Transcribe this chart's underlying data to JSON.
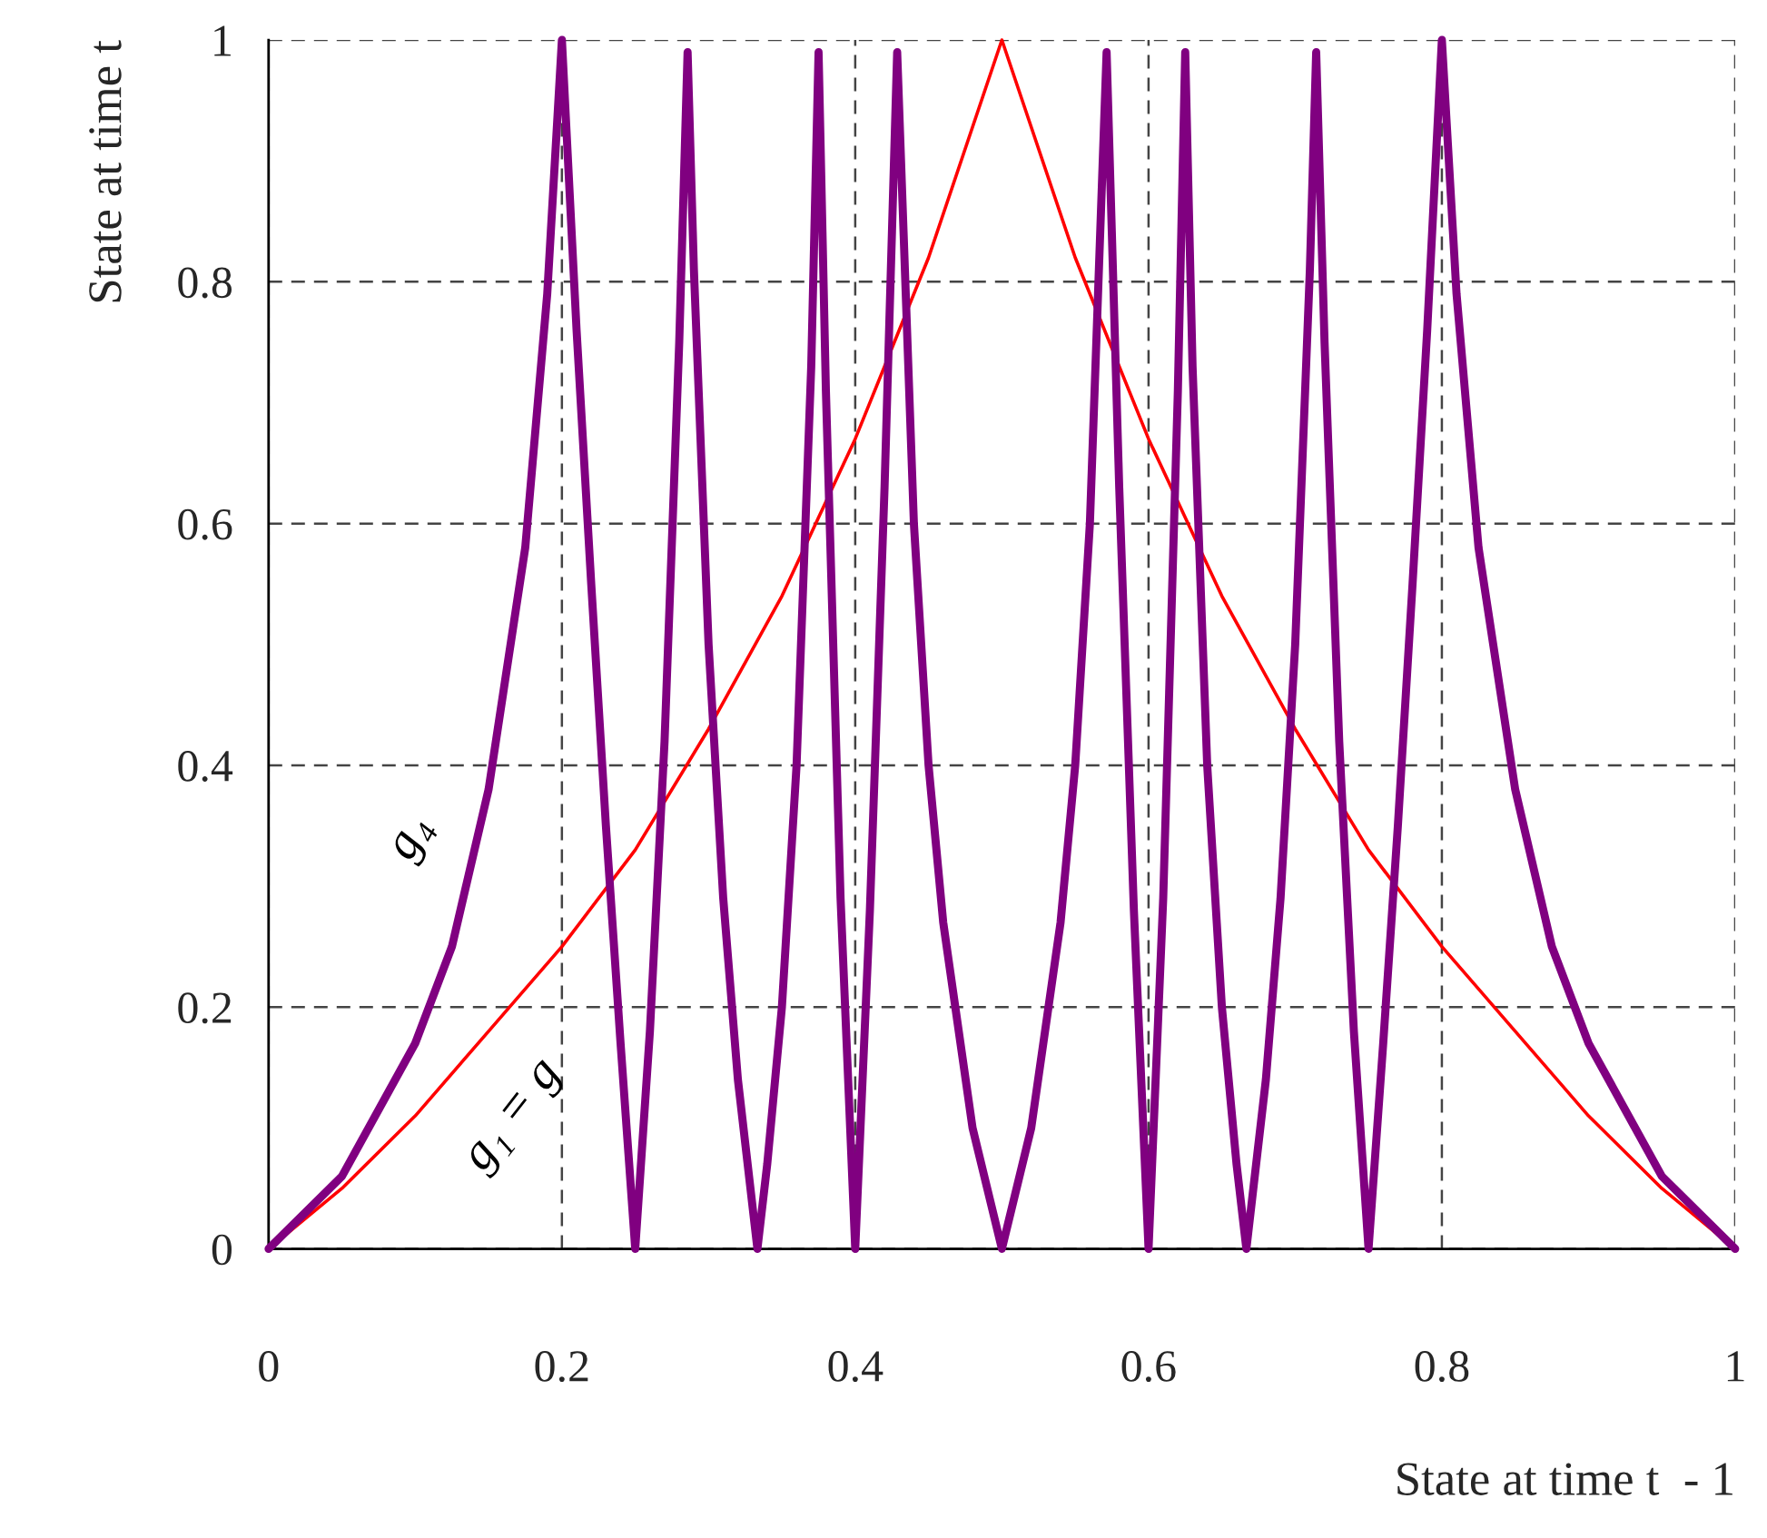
{
  "chart_data": {
    "type": "line",
    "xlabel": "State at time t  - 1",
    "ylabel": "State at time t",
    "xlim": [
      0,
      1
    ],
    "ylim": [
      0,
      1
    ],
    "xticks": [
      0,
      0.2,
      0.4,
      0.6,
      0.8,
      1
    ],
    "yticks": [
      0,
      0.2,
      0.4,
      0.6,
      0.8,
      1
    ],
    "grid": true,
    "marker": "none",
    "line_style": "solid",
    "series": [
      {
        "name": "g₁ = g",
        "color": "#ff0000",
        "x": [
          0,
          0.05,
          0.1,
          0.15,
          0.2,
          0.25,
          0.3,
          0.35,
          0.4,
          0.45,
          0.5,
          0.55,
          0.6,
          0.65,
          0.7,
          0.75,
          0.8,
          0.85,
          0.9,
          0.95,
          1
        ],
        "values": [
          0,
          0.05,
          0.11,
          0.18,
          0.25,
          0.33,
          0.43,
          0.54,
          0.67,
          0.82,
          1,
          0.82,
          0.67,
          0.54,
          0.43,
          0.33,
          0.25,
          0.18,
          0.11,
          0.05,
          0
        ]
      },
      {
        "name": "g₄",
        "color": "#800080",
        "x": [
          0,
          0.05,
          0.1,
          0.125,
          0.15,
          0.175,
          0.19,
          0.2,
          0.21,
          0.22,
          0.23,
          0.24,
          0.25,
          0.26,
          0.27,
          0.28,
          0.2857,
          0.29,
          0.3,
          0.31,
          0.32,
          0.3333,
          0.34,
          0.35,
          0.36,
          0.37,
          0.375,
          0.38,
          0.39,
          0.4,
          0.41,
          0.42,
          0.4286,
          0.44,
          0.45,
          0.46,
          0.48,
          0.5,
          0.52,
          0.54,
          0.55,
          0.56,
          0.5714,
          0.58,
          0.59,
          0.6,
          0.61,
          0.62,
          0.625,
          0.63,
          0.64,
          0.65,
          0.66,
          0.6667,
          0.68,
          0.69,
          0.7,
          0.71,
          0.7143,
          0.72,
          0.73,
          0.74,
          0.75,
          0.76,
          0.77,
          0.78,
          0.79,
          0.8,
          0.81,
          0.825,
          0.85,
          0.875,
          0.9,
          0.95,
          1
        ],
        "values": [
          0,
          0.06,
          0.17,
          0.25,
          0.38,
          0.58,
          0.79,
          1,
          0.76,
          0.55,
          0.35,
          0.17,
          0,
          0.18,
          0.42,
          0.75,
          0.99,
          0.81,
          0.5,
          0.29,
          0.14,
          0,
          0.07,
          0.2,
          0.4,
          0.73,
          0.99,
          0.71,
          0.29,
          0,
          0.28,
          0.63,
          0.99,
          0.6,
          0.4,
          0.27,
          0.1,
          0,
          0.1,
          0.27,
          0.4,
          0.6,
          0.99,
          0.63,
          0.28,
          0,
          0.29,
          0.71,
          0.99,
          0.73,
          0.4,
          0.2,
          0.07,
          0,
          0.14,
          0.29,
          0.5,
          0.81,
          0.99,
          0.75,
          0.42,
          0.18,
          0,
          0.17,
          0.35,
          0.55,
          0.76,
          1,
          0.79,
          0.58,
          0.38,
          0.25,
          0.17,
          0.06,
          0
        ]
      }
    ]
  }
}
